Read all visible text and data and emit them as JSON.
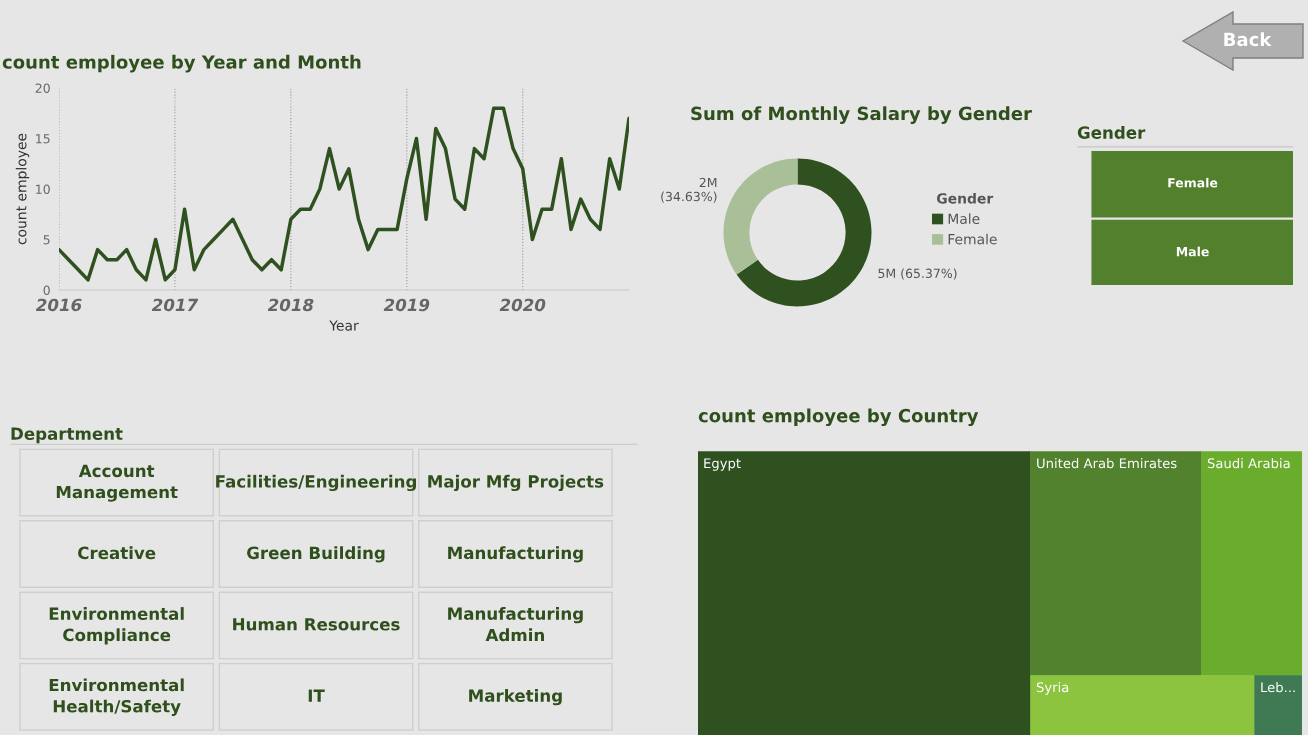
{
  "chart_data": [
    {
      "type": "line",
      "title": "count employee by Year and Month",
      "xlabel": "Year",
      "ylabel": "count employee",
      "x": [
        "2016-01",
        "2016-02",
        "2016-03",
        "2016-04",
        "2016-05",
        "2016-06",
        "2016-07",
        "2016-08",
        "2016-09",
        "2016-10",
        "2016-11",
        "2016-12",
        "2017-01",
        "2017-02",
        "2017-03",
        "2017-04",
        "2017-05",
        "2017-06",
        "2017-07",
        "2017-08",
        "2017-09",
        "2017-10",
        "2017-11",
        "2017-12",
        "2018-01",
        "2018-02",
        "2018-03",
        "2018-04",
        "2018-05",
        "2018-06",
        "2018-07",
        "2018-08",
        "2018-09",
        "2018-10",
        "2018-11",
        "2018-12",
        "2019-01",
        "2019-02",
        "2019-03",
        "2019-04",
        "2019-05",
        "2019-06",
        "2019-07",
        "2019-08",
        "2019-09",
        "2019-10",
        "2019-11",
        "2019-12",
        "2020-01",
        "2020-02",
        "2020-03",
        "2020-04",
        "2020-05",
        "2020-06",
        "2020-07",
        "2020-08",
        "2020-09",
        "2020-10",
        "2020-11",
        "2020-12"
      ],
      "series": [
        {
          "color": "#2f5120",
          "values": [
            4,
            3,
            2,
            1,
            4,
            3,
            3,
            4,
            2,
            1,
            5,
            1,
            2,
            8,
            2,
            4,
            5,
            6,
            7,
            5,
            3,
            2,
            3,
            2,
            7,
            8,
            8,
            10,
            14,
            10,
            12,
            7,
            4,
            6,
            6,
            6,
            11,
            15,
            7,
            16,
            14,
            9,
            8,
            14,
            13,
            18,
            18,
            14,
            12,
            5,
            8,
            8,
            13,
            6,
            9,
            7,
            6,
            13,
            10,
            17
          ]
        }
      ],
      "xlim": [
        "2016-01",
        "2020-12"
      ],
      "xticks": [
        "2016",
        "2017",
        "2018",
        "2019",
        "2020"
      ],
      "ylim": [
        0,
        20
      ],
      "yticks": [
        0,
        5,
        10,
        15,
        20
      ],
      "grid": "x",
      "marker": "none",
      "line_style": "solid"
    },
    {
      "type": "donut",
      "title": "Sum of Monthly Salary by Gender",
      "legend_title": "Gender",
      "legend": "right",
      "categories": [
        "Male",
        "Female"
      ],
      "values": [
        65.37,
        34.63
      ],
      "colors": [
        "#2f5120",
        "#a9bf98"
      ],
      "value_labels": [
        "5M (65.37%)",
        "2M\n(34.63%)"
      ]
    },
    {
      "type": "other",
      "title": "Gender",
      "categories": [
        "Female",
        "Male"
      ],
      "colors": [
        "#52802d",
        "#52802d"
      ]
    },
    {
      "type": "other",
      "title": "Department",
      "categories": [
        "Account Management",
        "Facilities/Engineering",
        "Major Mfg Projects",
        "Creative",
        "Green Building",
        "Manufacturing",
        "Environmental Compliance",
        "Human Resources",
        "Manufacturing Admin",
        "Environmental Health/Safety",
        "IT",
        "Marketing"
      ]
    },
    {
      "type": "other",
      "title": "count employee by Country",
      "categories": [
        "Egypt",
        "United Arab Emirates",
        "Saudi Arabia",
        "Syria",
        "Leb..."
      ],
      "colors": [
        "#2f5120",
        "#52822d",
        "#6aad2c",
        "#8cc43f",
        "#3f7a55"
      ]
    },
    {
      "type": "other",
      "annotations": [
        "Back"
      ]
    }
  ]
}
